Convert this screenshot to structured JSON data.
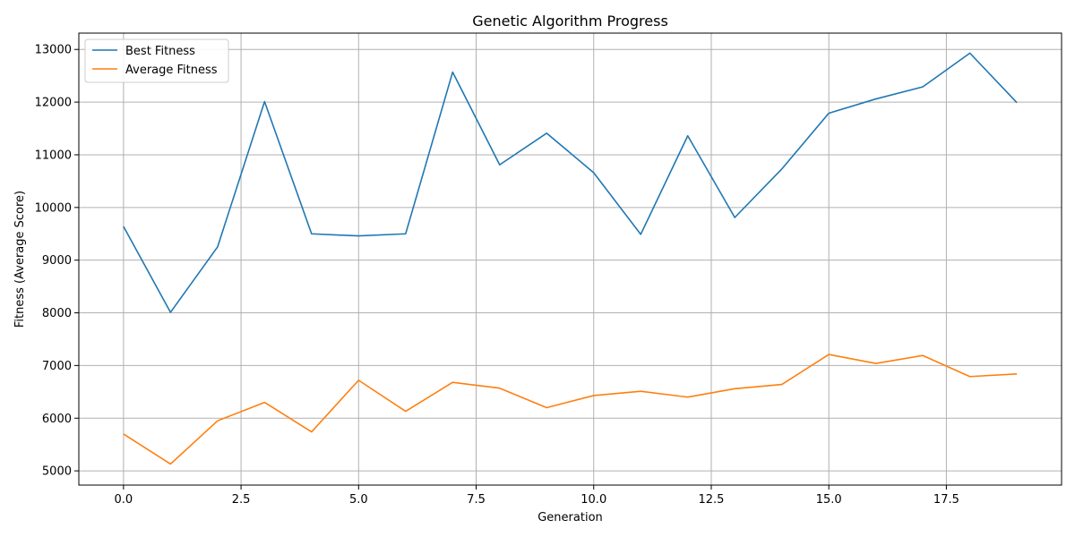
{
  "chart_data": {
    "type": "line",
    "title": "Genetic Algorithm Progress",
    "xlabel": "Generation",
    "ylabel": "Fitness (Average Score)",
    "xlim": [
      -0.95,
      19.95
    ],
    "ylim": [
      4730,
      13310
    ],
    "xticks": [
      0.0,
      2.5,
      5.0,
      7.5,
      10.0,
      12.5,
      15.0,
      17.5
    ],
    "xtick_labels": [
      "0.0",
      "2.5",
      "5.0",
      "7.5",
      "10.0",
      "12.5",
      "15.0",
      "17.5"
    ],
    "yticks": [
      5000,
      6000,
      7000,
      8000,
      9000,
      10000,
      11000,
      12000,
      13000
    ],
    "ytick_labels": [
      "5000",
      "6000",
      "7000",
      "8000",
      "9000",
      "10000",
      "11000",
      "12000",
      "13000"
    ],
    "grid": true,
    "legend_position": "top-left",
    "x": [
      0,
      1,
      2,
      3,
      4,
      5,
      6,
      7,
      8,
      9,
      10,
      11,
      12,
      13,
      14,
      15,
      16,
      17,
      18,
      19
    ],
    "series": [
      {
        "name": "Best Fitness",
        "color": "#1f77b4",
        "values": [
          9640,
          8010,
          9250,
          12010,
          9500,
          9460,
          9500,
          12570,
          10810,
          11410,
          10660,
          9490,
          11360,
          9810,
          10730,
          11790,
          12060,
          12290,
          12930,
          11990
        ]
      },
      {
        "name": "Average Fitness",
        "color": "#ff7f0e",
        "values": [
          5700,
          5130,
          5950,
          6300,
          5740,
          6720,
          6130,
          6680,
          6570,
          6200,
          6430,
          6510,
          6400,
          6560,
          6640,
          7210,
          7040,
          7190,
          6790,
          6840
        ]
      }
    ]
  }
}
